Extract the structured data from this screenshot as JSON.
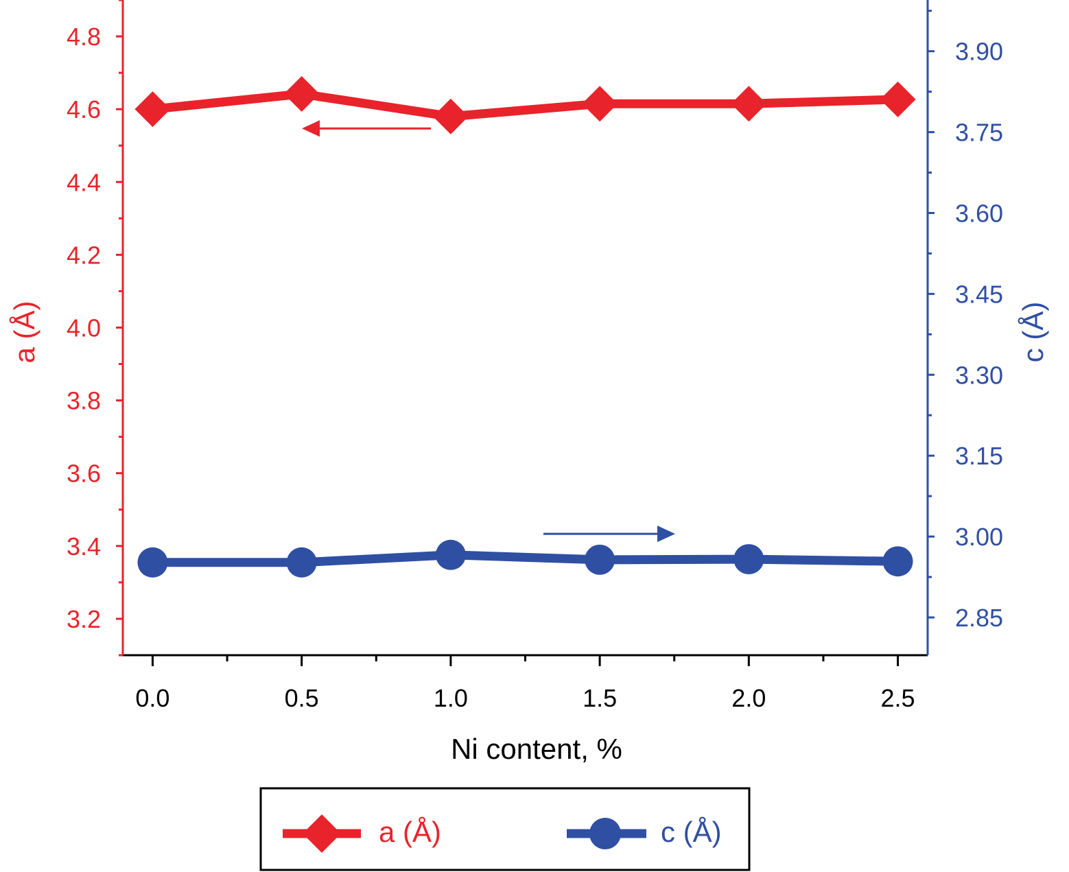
{
  "colors": {
    "a": "#e8232b",
    "c": "#2f4fa3",
    "axis_x": "#000000"
  },
  "chart_data": {
    "type": "line",
    "x": [
      0.0,
      0.5,
      1.0,
      1.5,
      2.0,
      2.5
    ],
    "x_ticks": [
      "0.0",
      "0.5",
      "1.0",
      "1.5",
      "2.0",
      "2.5"
    ],
    "xlabel": "Ni content, %",
    "xlim": [
      -0.1,
      2.6
    ],
    "series": [
      {
        "name": "a (Å)",
        "axis": "left",
        "marker": "diamond",
        "values": [
          4.6,
          4.642,
          4.58,
          4.615,
          4.615,
          4.627
        ]
      },
      {
        "name": "c (Å)",
        "axis": "right",
        "marker": "circle",
        "values": [
          2.952,
          2.952,
          2.966,
          2.957,
          2.958,
          2.954
        ]
      }
    ],
    "y_left": {
      "label": "a (Å)",
      "lim": [
        3.1,
        4.9
      ],
      "ticks": [
        "3.2",
        "3.4",
        "3.6",
        "3.8",
        "4.0",
        "4.2",
        "4.4",
        "4.6",
        "4.8"
      ]
    },
    "y_right": {
      "label": "c (Å)",
      "lim": [
        2.78,
        3.995
      ],
      "ticks": [
        "2.85",
        "3.00",
        "3.15",
        "3.30",
        "3.45",
        "3.60",
        "3.75",
        "3.90"
      ]
    },
    "legend": {
      "position": "bottom",
      "entries": [
        "a (Å)",
        "c (Å)"
      ]
    },
    "annotations": [
      {
        "type": "arrow",
        "direction": "left",
        "series": "a (Å)"
      },
      {
        "type": "arrow",
        "direction": "right",
        "series": "c (Å)"
      }
    ],
    "grid": false
  }
}
